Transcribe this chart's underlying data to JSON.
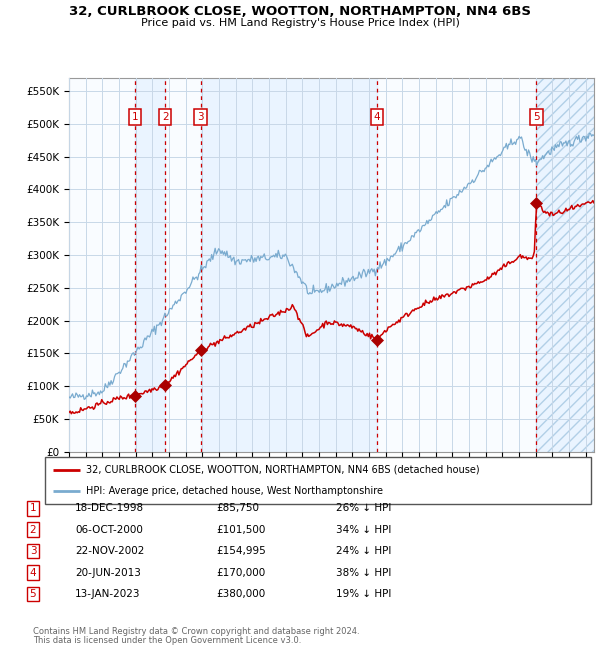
{
  "title": "32, CURLBROOK CLOSE, WOOTTON, NORTHAMPTON, NN4 6BS",
  "subtitle": "Price paid vs. HM Land Registry's House Price Index (HPI)",
  "ytick_values": [
    0,
    50000,
    100000,
    150000,
    200000,
    250000,
    300000,
    350000,
    400000,
    450000,
    500000,
    550000
  ],
  "xlim": [
    1995.0,
    2026.5
  ],
  "ylim": [
    0,
    570000
  ],
  "purchases": [
    {
      "num": 1,
      "date": "18-DEC-1998",
      "price": 85750,
      "year": 1998.96,
      "pct": "26%",
      "dir": "↓"
    },
    {
      "num": 2,
      "date": "06-OCT-2000",
      "price": 101500,
      "year": 2000.77,
      "pct": "34%",
      "dir": "↓"
    },
    {
      "num": 3,
      "date": "22-NOV-2002",
      "price": 154995,
      "year": 2002.9,
      "pct": "24%",
      "dir": "↓"
    },
    {
      "num": 4,
      "date": "20-JUN-2013",
      "price": 170000,
      "year": 2013.47,
      "pct": "38%",
      "dir": "↓"
    },
    {
      "num": 5,
      "date": "13-JAN-2023",
      "price": 380000,
      "year": 2023.04,
      "pct": "19%",
      "dir": "↓"
    }
  ],
  "legend_line1": "32, CURLBROOK CLOSE, WOOTTON, NORTHAMPTON, NN4 6BS (detached house)",
  "legend_line2": "HPI: Average price, detached house, West Northamptonshire",
  "footer1": "Contains HM Land Registry data © Crown copyright and database right 2024.",
  "footer2": "This data is licensed under the Open Government Licence v3.0.",
  "hpi_color": "#7aabcf",
  "price_color": "#cc0000",
  "bg_color": "#ddeeff",
  "grid_color": "#c8d8e8",
  "vline_color": "#cc0000",
  "marker_color": "#aa0000"
}
